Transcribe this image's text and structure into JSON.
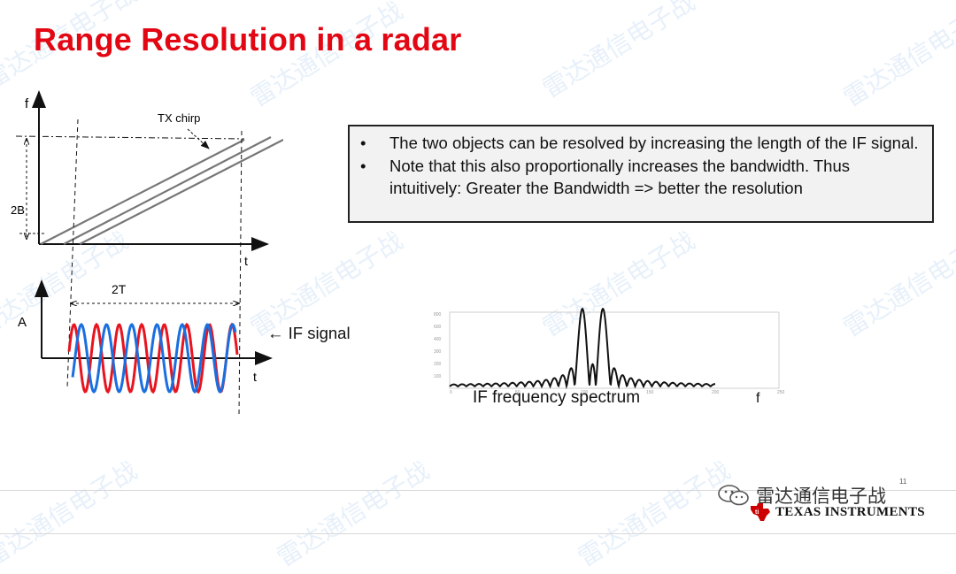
{
  "slide": {
    "title": "Range Resolution in a radar",
    "bullets": [
      "The two objects can be resolved by increasing the length of the IF signal.",
      "Note that this also proportionally increases the bandwidth. Thus intuitively: Greater the Bandwidth => better the resolution"
    ],
    "page_number": "11"
  },
  "chirp_diagram": {
    "f_label": "f",
    "t_label": "t",
    "two_b_label": "2B",
    "tx_chirp_label": "TX chirp"
  },
  "if_diagram": {
    "a_label": "A",
    "t_label": "t",
    "two_t_label": "2T",
    "if_signal_label": "← IF signal",
    "colors": {
      "series_1": "#e8141f",
      "series_2": "#1a6fe0"
    }
  },
  "spectrum": {
    "caption": "IF frequency spectrum",
    "f_label": "f",
    "y_ticks": [
      "800",
      "600",
      "400",
      "300",
      "200",
      "100"
    ],
    "x_ticks": [
      "0",
      "50",
      "100",
      "150",
      "200",
      "250"
    ]
  },
  "branding": {
    "wechat_name": "雷达通信电子战",
    "company": "TEXAS INSTRUMENTS",
    "watermark_text": "雷达通信电子战"
  },
  "colors": {
    "title": "#e30613",
    "box_bg": "#f2f2f2"
  }
}
